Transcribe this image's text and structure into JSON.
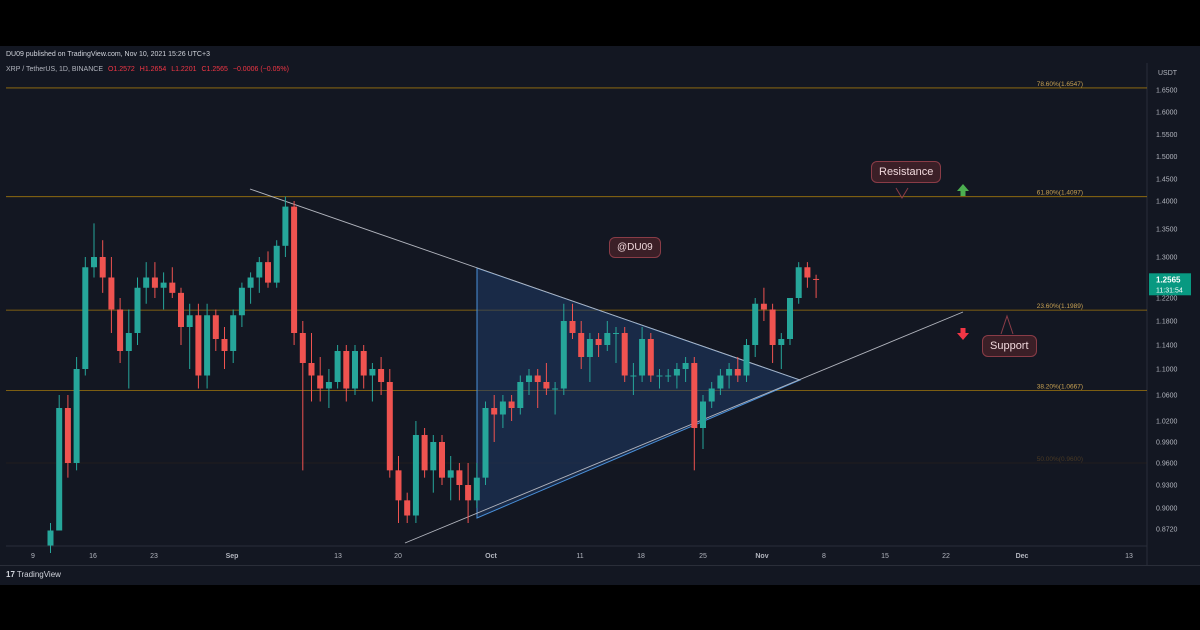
{
  "header": {
    "publisher": "DU09 published on TradingView.com, Nov 10, 2021 15:26 UTC+3",
    "symbol": "XRP / TetherUS, 1D, BINANCE",
    "open": "O1.2572",
    "high": "H1.2654",
    "low": "L1.2201",
    "close": "C1.2565",
    "change": "−0.0006 (−0.05%)"
  },
  "footer": {
    "logo_mark": "17",
    "logo_text": "TradingView"
  },
  "annotations": {
    "watermark": "@DU09",
    "resistance": "Resistance",
    "support": "Support"
  },
  "price_tag": {
    "price": "1.2565",
    "countdown": "11:31:54"
  },
  "colors": {
    "background": "#131722",
    "up": "#26a69a",
    "down": "#ef5350",
    "fib_line": "#b8860b",
    "trend_line": "#b2b5be",
    "triangle_fill": "#1f3a66",
    "triangle_stroke": "#4a90d9",
    "arrow_up": "#4caf50",
    "arrow_down": "#f23645"
  },
  "chart_data": {
    "type": "candlestick",
    "y_unit": "USDT",
    "y_ticks": [
      "1.6500",
      "1.6000",
      "1.5500",
      "1.5000",
      "1.4500",
      "1.4000",
      "1.3500",
      "1.3000",
      "1.2200",
      "1.1800",
      "1.1400",
      "1.1000",
      "1.0600",
      "1.0200",
      "0.9900",
      "0.9600",
      "0.9300",
      "0.9000",
      "0.8720"
    ],
    "x_ticks": [
      "9",
      "16",
      "23",
      "Sep",
      "13",
      "20",
      "Oct",
      "11",
      "18",
      "25",
      "Nov",
      "8",
      "15",
      "22",
      "Dec",
      "13"
    ],
    "fib_levels": [
      {
        "label": "78.60%(1.6547)",
        "value": 1.6547
      },
      {
        "label": "61.80%(1.4097)",
        "value": 1.4097
      },
      {
        "label": "23.60%(1.1989)",
        "value": 1.1989
      },
      {
        "label": "38.20%(1.0667)",
        "value": 1.0667
      },
      {
        "label": "50.00%(0.9600)",
        "value": 0.96
      }
    ],
    "candles": [
      {
        "o": 0.85,
        "h": 0.88,
        "l": 0.84,
        "c": 0.87
      },
      {
        "o": 0.87,
        "h": 1.06,
        "l": 0.87,
        "c": 1.04
      },
      {
        "o": 1.04,
        "h": 1.06,
        "l": 0.94,
        "c": 0.96
      },
      {
        "o": 0.96,
        "h": 1.12,
        "l": 0.95,
        "c": 1.1
      },
      {
        "o": 1.1,
        "h": 1.3,
        "l": 1.09,
        "c": 1.28
      },
      {
        "o": 1.28,
        "h": 1.36,
        "l": 1.26,
        "c": 1.3
      },
      {
        "o": 1.3,
        "h": 1.33,
        "l": 1.23,
        "c": 1.26
      },
      {
        "o": 1.26,
        "h": 1.3,
        "l": 1.16,
        "c": 1.2
      },
      {
        "o": 1.2,
        "h": 1.22,
        "l": 1.11,
        "c": 1.13
      },
      {
        "o": 1.13,
        "h": 1.2,
        "l": 1.07,
        "c": 1.16
      },
      {
        "o": 1.16,
        "h": 1.26,
        "l": 1.14,
        "c": 1.24
      },
      {
        "o": 1.24,
        "h": 1.29,
        "l": 1.21,
        "c": 1.26
      },
      {
        "o": 1.26,
        "h": 1.29,
        "l": 1.22,
        "c": 1.24
      },
      {
        "o": 1.24,
        "h": 1.27,
        "l": 1.2,
        "c": 1.25
      },
      {
        "o": 1.25,
        "h": 1.28,
        "l": 1.22,
        "c": 1.23
      },
      {
        "o": 1.23,
        "h": 1.24,
        "l": 1.14,
        "c": 1.17
      },
      {
        "o": 1.17,
        "h": 1.21,
        "l": 1.1,
        "c": 1.19
      },
      {
        "o": 1.19,
        "h": 1.21,
        "l": 1.07,
        "c": 1.09
      },
      {
        "o": 1.09,
        "h": 1.21,
        "l": 1.07,
        "c": 1.19
      },
      {
        "o": 1.19,
        "h": 1.2,
        "l": 1.13,
        "c": 1.15
      },
      {
        "o": 1.15,
        "h": 1.17,
        "l": 1.1,
        "c": 1.13
      },
      {
        "o": 1.13,
        "h": 1.2,
        "l": 1.11,
        "c": 1.19
      },
      {
        "o": 1.19,
        "h": 1.25,
        "l": 1.17,
        "c": 1.24
      },
      {
        "o": 1.24,
        "h": 1.27,
        "l": 1.21,
        "c": 1.26
      },
      {
        "o": 1.26,
        "h": 1.3,
        "l": 1.23,
        "c": 1.29
      },
      {
        "o": 1.29,
        "h": 1.31,
        "l": 1.24,
        "c": 1.25
      },
      {
        "o": 1.25,
        "h": 1.33,
        "l": 1.24,
        "c": 1.32
      },
      {
        "o": 1.32,
        "h": 1.41,
        "l": 1.3,
        "c": 1.39
      },
      {
        "o": 1.39,
        "h": 1.4,
        "l": 1.14,
        "c": 1.16
      },
      {
        "o": 1.16,
        "h": 1.18,
        "l": 0.95,
        "c": 1.11
      },
      {
        "o": 1.11,
        "h": 1.16,
        "l": 1.05,
        "c": 1.09
      },
      {
        "o": 1.09,
        "h": 1.12,
        "l": 1.05,
        "c": 1.07
      },
      {
        "o": 1.07,
        "h": 1.1,
        "l": 1.04,
        "c": 1.08
      },
      {
        "o": 1.08,
        "h": 1.14,
        "l": 1.07,
        "c": 1.13
      },
      {
        "o": 1.13,
        "h": 1.14,
        "l": 1.05,
        "c": 1.07
      },
      {
        "o": 1.07,
        "h": 1.14,
        "l": 1.06,
        "c": 1.13
      },
      {
        "o": 1.13,
        "h": 1.14,
        "l": 1.07,
        "c": 1.09
      },
      {
        "o": 1.09,
        "h": 1.11,
        "l": 1.05,
        "c": 1.1
      },
      {
        "o": 1.1,
        "h": 1.12,
        "l": 1.06,
        "c": 1.08
      },
      {
        "o": 1.08,
        "h": 1.1,
        "l": 0.94,
        "c": 0.95
      },
      {
        "o": 0.95,
        "h": 0.97,
        "l": 0.88,
        "c": 0.91
      },
      {
        "o": 0.91,
        "h": 0.92,
        "l": 0.88,
        "c": 0.89
      },
      {
        "o": 0.89,
        "h": 1.02,
        "l": 0.88,
        "c": 1.0
      },
      {
        "o": 1.0,
        "h": 1.01,
        "l": 0.94,
        "c": 0.95
      },
      {
        "o": 0.95,
        "h": 1.0,
        "l": 0.92,
        "c": 0.99
      },
      {
        "o": 0.99,
        "h": 1.0,
        "l": 0.93,
        "c": 0.94
      },
      {
        "o": 0.94,
        "h": 0.97,
        "l": 0.91,
        "c": 0.95
      },
      {
        "o": 0.95,
        "h": 0.96,
        "l": 0.91,
        "c": 0.93
      },
      {
        "o": 0.93,
        "h": 0.96,
        "l": 0.88,
        "c": 0.91
      },
      {
        "o": 0.91,
        "h": 0.96,
        "l": 0.9,
        "c": 0.94
      },
      {
        "o": 0.94,
        "h": 1.05,
        "l": 0.93,
        "c": 1.04
      },
      {
        "o": 1.04,
        "h": 1.06,
        "l": 0.99,
        "c": 1.03
      },
      {
        "o": 1.03,
        "h": 1.06,
        "l": 1.01,
        "c": 1.05
      },
      {
        "o": 1.05,
        "h": 1.06,
        "l": 1.02,
        "c": 1.04
      },
      {
        "o": 1.04,
        "h": 1.09,
        "l": 1.03,
        "c": 1.08
      },
      {
        "o": 1.08,
        "h": 1.1,
        "l": 1.06,
        "c": 1.09
      },
      {
        "o": 1.09,
        "h": 1.1,
        "l": 1.04,
        "c": 1.08
      },
      {
        "o": 1.08,
        "h": 1.11,
        "l": 1.06,
        "c": 1.07
      },
      {
        "o": 1.07,
        "h": 1.08,
        "l": 1.03,
        "c": 1.07
      },
      {
        "o": 1.07,
        "h": 1.21,
        "l": 1.06,
        "c": 1.18
      },
      {
        "o": 1.18,
        "h": 1.21,
        "l": 1.15,
        "c": 1.16
      },
      {
        "o": 1.16,
        "h": 1.18,
        "l": 1.1,
        "c": 1.12
      },
      {
        "o": 1.12,
        "h": 1.16,
        "l": 1.08,
        "c": 1.15
      },
      {
        "o": 1.15,
        "h": 1.16,
        "l": 1.12,
        "c": 1.14
      },
      {
        "o": 1.14,
        "h": 1.18,
        "l": 1.13,
        "c": 1.16
      },
      {
        "o": 1.16,
        "h": 1.17,
        "l": 1.11,
        "c": 1.16
      },
      {
        "o": 1.16,
        "h": 1.17,
        "l": 1.08,
        "c": 1.09
      },
      {
        "o": 1.09,
        "h": 1.11,
        "l": 1.06,
        "c": 1.09
      },
      {
        "o": 1.09,
        "h": 1.17,
        "l": 1.08,
        "c": 1.15
      },
      {
        "o": 1.15,
        "h": 1.16,
        "l": 1.08,
        "c": 1.09
      },
      {
        "o": 1.09,
        "h": 1.1,
        "l": 1.07,
        "c": 1.09
      },
      {
        "o": 1.09,
        "h": 1.1,
        "l": 1.08,
        "c": 1.09
      },
      {
        "o": 1.09,
        "h": 1.11,
        "l": 1.07,
        "c": 1.1
      },
      {
        "o": 1.1,
        "h": 1.12,
        "l": 1.08,
        "c": 1.11
      },
      {
        "o": 1.11,
        "h": 1.12,
        "l": 0.95,
        "c": 1.01
      },
      {
        "o": 1.01,
        "h": 1.06,
        "l": 0.98,
        "c": 1.05
      },
      {
        "o": 1.05,
        "h": 1.08,
        "l": 1.04,
        "c": 1.07
      },
      {
        "o": 1.07,
        "h": 1.1,
        "l": 1.06,
        "c": 1.09
      },
      {
        "o": 1.09,
        "h": 1.11,
        "l": 1.07,
        "c": 1.1
      },
      {
        "o": 1.1,
        "h": 1.12,
        "l": 1.08,
        "c": 1.09
      },
      {
        "o": 1.09,
        "h": 1.15,
        "l": 1.08,
        "c": 1.14
      },
      {
        "o": 1.14,
        "h": 1.22,
        "l": 1.12,
        "c": 1.21
      },
      {
        "o": 1.21,
        "h": 1.24,
        "l": 1.18,
        "c": 1.2
      },
      {
        "o": 1.2,
        "h": 1.21,
        "l": 1.11,
        "c": 1.14
      },
      {
        "o": 1.14,
        "h": 1.16,
        "l": 1.1,
        "c": 1.15
      },
      {
        "o": 1.15,
        "h": 1.22,
        "l": 1.14,
        "c": 1.22
      },
      {
        "o": 1.22,
        "h": 1.29,
        "l": 1.21,
        "c": 1.28
      },
      {
        "o": 1.28,
        "h": 1.29,
        "l": 1.24,
        "c": 1.26
      },
      {
        "o": 1.2572,
        "h": 1.2654,
        "l": 1.2201,
        "c": 1.2565
      }
    ]
  }
}
